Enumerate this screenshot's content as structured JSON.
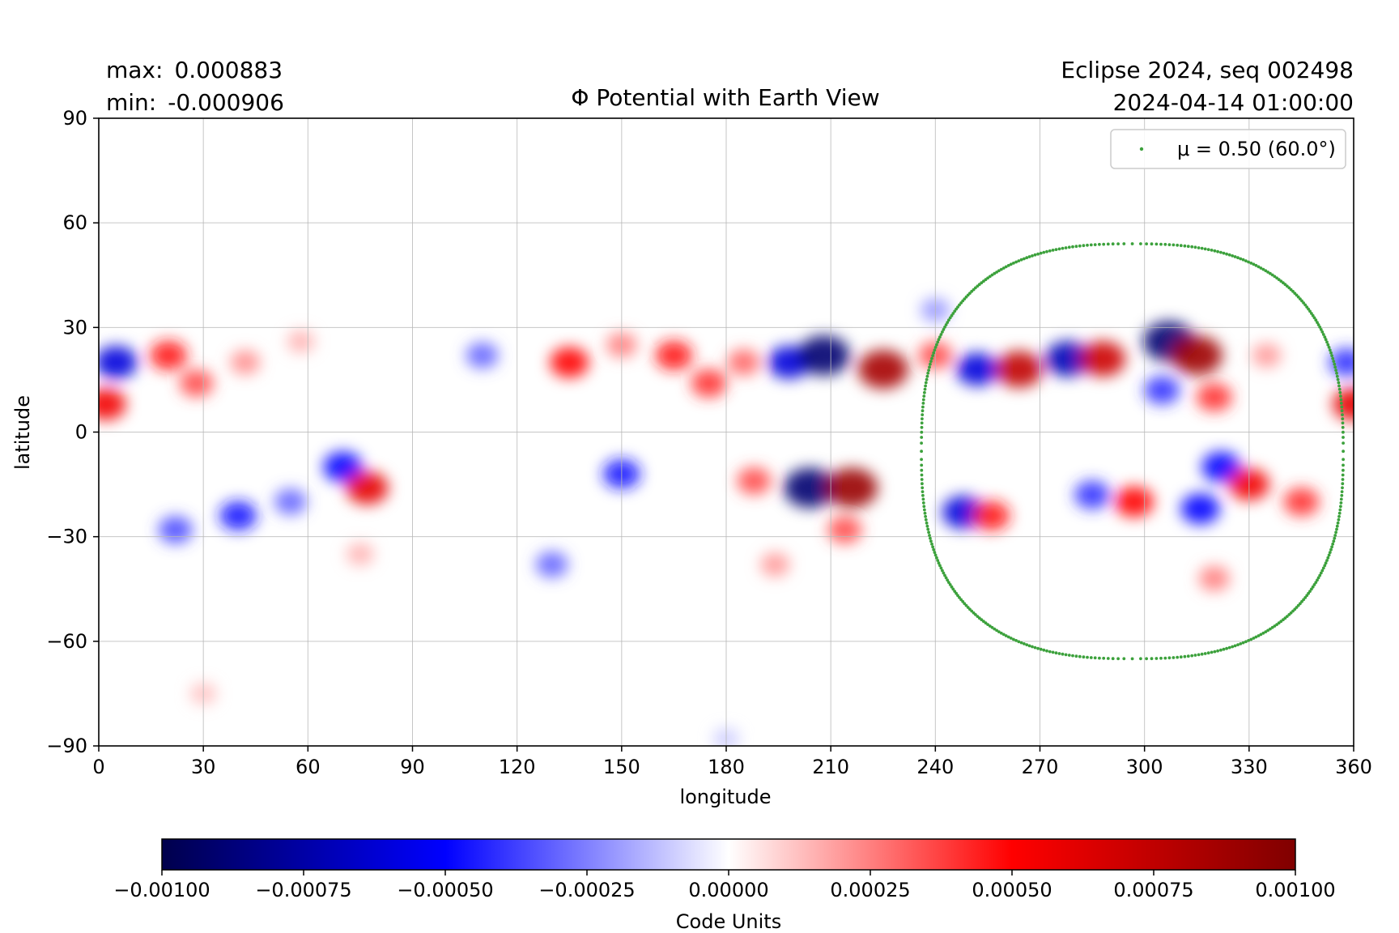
{
  "chart_data": {
    "type": "heatmap",
    "title": "Φ Potential with Earth View",
    "stats": {
      "max_label": "max:",
      "max_value": "0.000883",
      "min_label": "min:",
      "min_value": "-0.000906"
    },
    "info": {
      "line1": "Eclipse 2024, seq 002498",
      "line2": "2024-04-14 01:00:00"
    },
    "xlabel": "longitude",
    "ylabel": "latitude",
    "xlim": [
      0,
      360
    ],
    "ylim": [
      -90,
      90
    ],
    "x_ticks": [
      0,
      30,
      60,
      90,
      120,
      150,
      180,
      210,
      240,
      270,
      300,
      330,
      360
    ],
    "y_ticks": [
      90,
      60,
      30,
      0,
      -30,
      -60,
      -90
    ],
    "y_tick_labels": [
      "90",
      "60",
      "30",
      "0",
      "−30",
      "−60",
      "−90"
    ],
    "grid": true,
    "colormap": {
      "name": "seismic",
      "range": [
        -0.001,
        0.001
      ],
      "ticks": [
        -0.001,
        -0.00075,
        -0.0005,
        -0.00025,
        0,
        0.00025,
        0.0005,
        0.00075,
        0.001
      ],
      "tick_labels": [
        "−0.00100",
        "−0.00075",
        "−0.00050",
        "−0.00025",
        "0.00000",
        "0.00025",
        "0.00050",
        "0.00075",
        "0.00100"
      ],
      "label": "Code Units",
      "colors": [
        "#00004c",
        "#0000ff",
        "#ffffff",
        "#ff0000",
        "#800000"
      ]
    },
    "field_features": [
      {
        "lon": 5,
        "lat": 20,
        "value": -0.0006
      },
      {
        "lon": 2,
        "lat": 8,
        "value": 0.00055
      },
      {
        "lon": 20,
        "lat": 22,
        "value": 0.00045
      },
      {
        "lon": 28,
        "lat": 14,
        "value": 0.00035
      },
      {
        "lon": 42,
        "lat": 20,
        "value": 0.00022
      },
      {
        "lon": 58,
        "lat": 26,
        "value": 0.00015
      },
      {
        "lon": 70,
        "lat": -10,
        "value": -0.0005
      },
      {
        "lon": 77,
        "lat": -16,
        "value": 0.0006
      },
      {
        "lon": 40,
        "lat": -24,
        "value": -0.00045
      },
      {
        "lon": 22,
        "lat": -28,
        "value": -0.00035
      },
      {
        "lon": 55,
        "lat": -20,
        "value": -0.0003
      },
      {
        "lon": 110,
        "lat": 22,
        "value": -0.0003
      },
      {
        "lon": 135,
        "lat": 20,
        "value": 0.0005
      },
      {
        "lon": 150,
        "lat": 25,
        "value": 0.00025
      },
      {
        "lon": 165,
        "lat": 22,
        "value": 0.00045
      },
      {
        "lon": 175,
        "lat": 14,
        "value": 0.0004
      },
      {
        "lon": 185,
        "lat": 20,
        "value": 0.0003
      },
      {
        "lon": 198,
        "lat": 20,
        "value": -0.0006
      },
      {
        "lon": 208,
        "lat": 22,
        "value": -0.0009
      },
      {
        "lon": 225,
        "lat": 18,
        "value": 0.00085
      },
      {
        "lon": 240,
        "lat": 22,
        "value": 0.00035
      },
      {
        "lon": 252,
        "lat": 18,
        "value": -0.0006
      },
      {
        "lon": 264,
        "lat": 18,
        "value": 0.00075
      },
      {
        "lon": 278,
        "lat": 21,
        "value": -0.0007
      },
      {
        "lon": 288,
        "lat": 21,
        "value": 0.0007
      },
      {
        "lon": 307,
        "lat": 26,
        "value": -0.0009
      },
      {
        "lon": 315,
        "lat": 22,
        "value": 0.00088
      },
      {
        "lon": 305,
        "lat": 12,
        "value": -0.0004
      },
      {
        "lon": 320,
        "lat": 10,
        "value": 0.0004
      },
      {
        "lon": 360,
        "lat": 8,
        "value": 0.0006
      },
      {
        "lon": 358,
        "lat": 20,
        "value": -0.0004
      },
      {
        "lon": 335,
        "lat": 22,
        "value": 0.0002
      },
      {
        "lon": 150,
        "lat": -12,
        "value": -0.00045
      },
      {
        "lon": 130,
        "lat": -38,
        "value": -0.0003
      },
      {
        "lon": 188,
        "lat": -14,
        "value": 0.00035
      },
      {
        "lon": 204,
        "lat": -16,
        "value": -0.0009
      },
      {
        "lon": 216,
        "lat": -16,
        "value": 0.0009
      },
      {
        "lon": 214,
        "lat": -28,
        "value": 0.00035
      },
      {
        "lon": 194,
        "lat": -38,
        "value": 0.0002
      },
      {
        "lon": 248,
        "lat": -23,
        "value": -0.0006
      },
      {
        "lon": 256,
        "lat": -24,
        "value": 0.00045
      },
      {
        "lon": 285,
        "lat": -18,
        "value": -0.0004
      },
      {
        "lon": 297,
        "lat": -20,
        "value": 0.0005
      },
      {
        "lon": 316,
        "lat": -22,
        "value": -0.0005
      },
      {
        "lon": 322,
        "lat": -10,
        "value": -0.0005
      },
      {
        "lon": 330,
        "lat": -15,
        "value": 0.00055
      },
      {
        "lon": 345,
        "lat": -20,
        "value": 0.0004
      },
      {
        "lon": 320,
        "lat": -42,
        "value": 0.00025
      },
      {
        "lon": 75,
        "lat": -35,
        "value": 0.00015
      },
      {
        "lon": 30,
        "lat": -75,
        "value": 0.00012
      },
      {
        "lon": 180,
        "lat": -88,
        "value": -0.0001
      },
      {
        "lon": 240,
        "lat": 35,
        "value": -0.0002
      }
    ],
    "series": [
      {
        "name": "μ = 0.50 (60.0°)",
        "type": "contour",
        "color": "#3ca13c",
        "center_lon": 298,
        "center_lat": -5,
        "lon_min": 236,
        "lon_max": 357,
        "lat_min": -65,
        "lat_max": 54
      }
    ],
    "legend": {
      "position": "top-right",
      "entries": [
        {
          "label": "μ = 0.50 (60.0°)",
          "color": "#3ca13c"
        }
      ]
    }
  }
}
